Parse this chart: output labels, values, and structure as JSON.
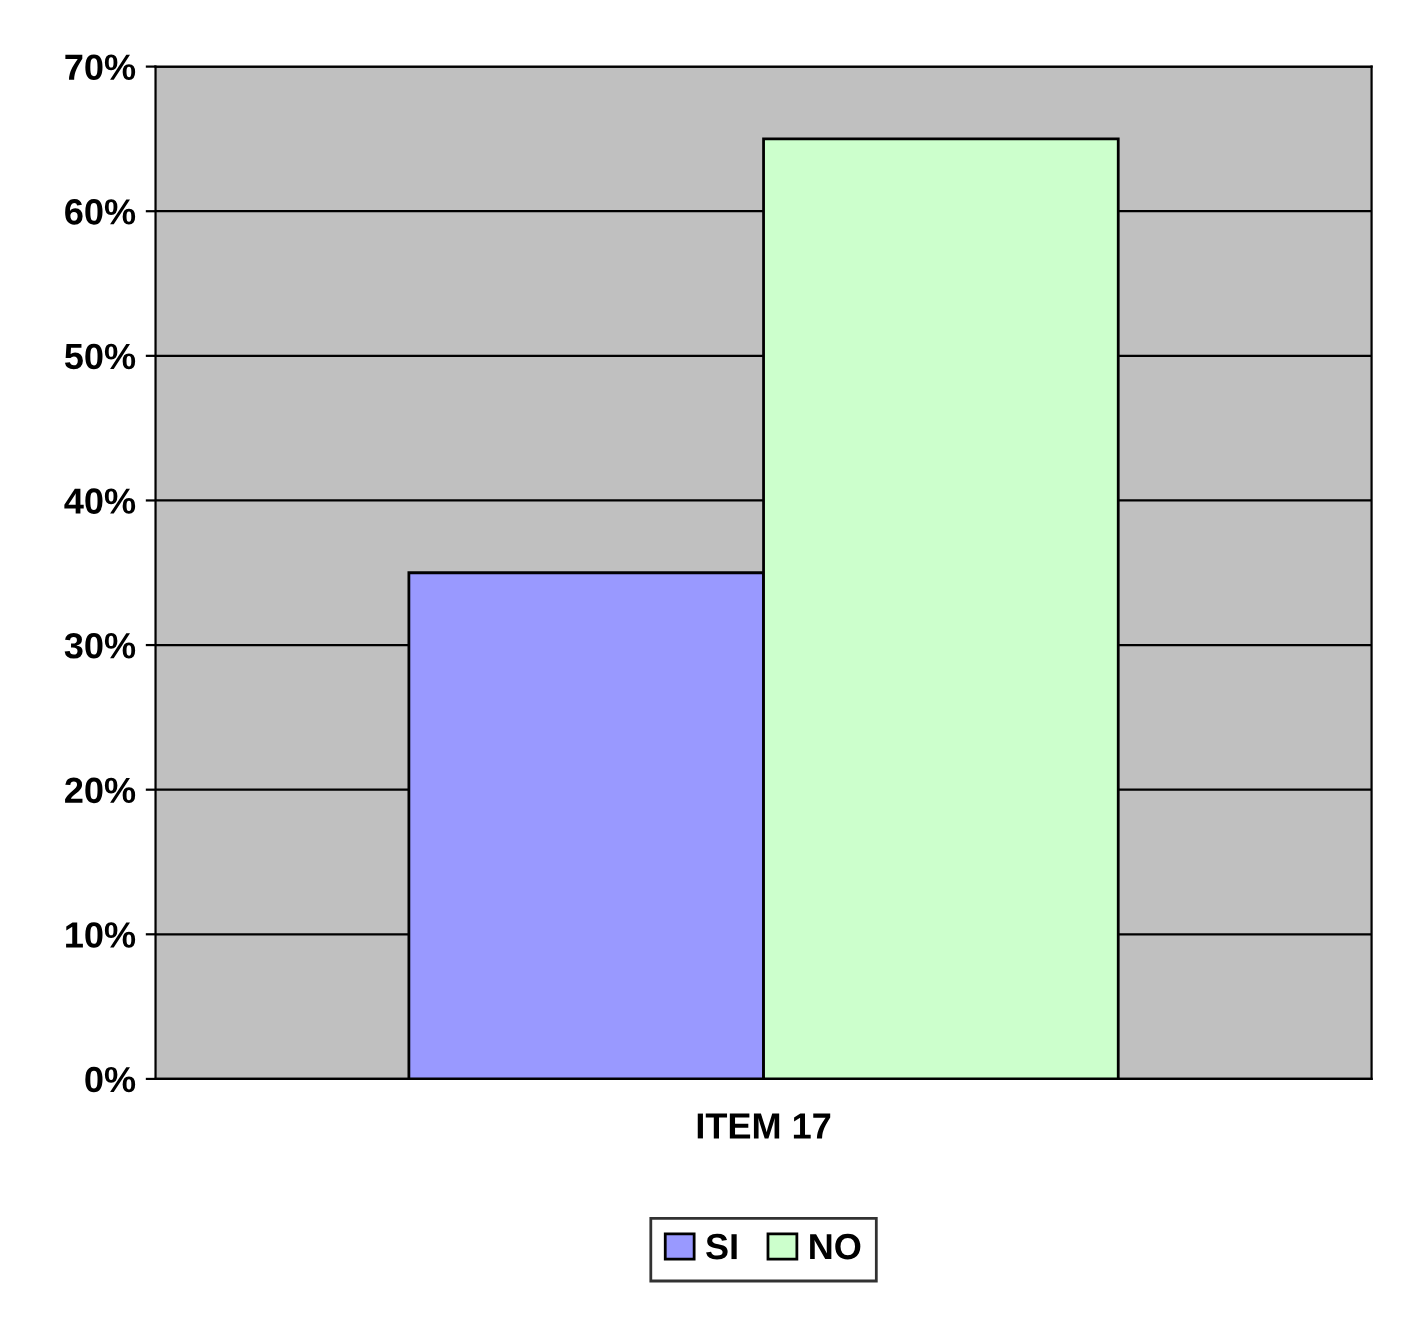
{
  "chart_data": {
    "type": "bar",
    "categories": [
      "ITEM 17"
    ],
    "series": [
      {
        "name": "SI",
        "color": "#9999ff",
        "values": [
          35
        ]
      },
      {
        "name": "NO",
        "color": "#ccffcc",
        "values": [
          65
        ]
      }
    ],
    "ylim": [
      0,
      70
    ],
    "yticks": [
      {
        "value": 0,
        "label": "0%"
      },
      {
        "value": 10,
        "label": "10%"
      },
      {
        "value": 20,
        "label": "20%"
      },
      {
        "value": 30,
        "label": "30%"
      },
      {
        "value": 40,
        "label": "40%"
      },
      {
        "value": 50,
        "label": "50%"
      },
      {
        "value": 60,
        "label": "60%"
      },
      {
        "value": 70,
        "label": "70%"
      }
    ],
    "grid": "y",
    "legend": "bottom"
  }
}
